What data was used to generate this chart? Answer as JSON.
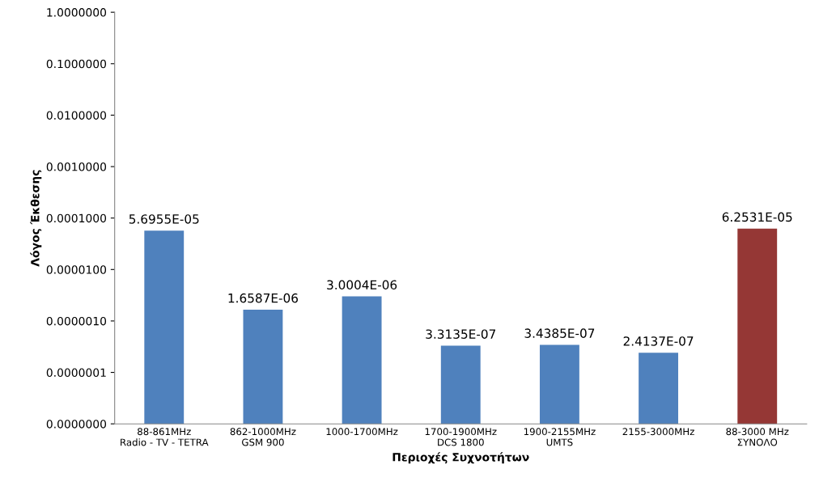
{
  "chart_data": {
    "type": "bar",
    "xlabel": "Περιοχές Συχνοτήτων",
    "ylabel": "Λόγος Έκθεσης",
    "categories": [
      "88-861MHz\nRadio - TV - TETRA",
      "862-1000MHz\nGSM 900",
      "1000-1700MHz",
      "1700-1900MHz\nDCS 1800",
      "1900-2155MHz\nUMTS",
      "2155-3000MHz",
      "88-3000 MHz\nΣΥΝΟΛΟ"
    ],
    "values": [
      5.6955e-05,
      1.6587e-06,
      3.0004e-06,
      3.3135e-07,
      3.4385e-07,
      2.4137e-07,
      6.2531e-05
    ],
    "colors": [
      "#4f81bd",
      "#4f81bd",
      "#4f81bd",
      "#4f81bd",
      "#4f81bd",
      "#4f81bd",
      "#953735"
    ],
    "value_labels": [
      "5.6955E-05",
      "1.6587E-06",
      "3.0004E-06",
      "3.3135E-07",
      "3.4385E-07",
      "2.4137E-07",
      "6.2531E-05"
    ],
    "log": "y",
    "ylim": [
      1e-08,
      1
    ],
    "yticks": [
      {
        "value": 1e-08,
        "label": "0.0000000"
      },
      {
        "value": 1e-07,
        "label": "0.0000001"
      },
      {
        "value": 1e-06,
        "label": "0.0000010"
      },
      {
        "value": 1e-05,
        "label": "0.0000100"
      },
      {
        "value": 0.0001,
        "label": "0.0001000"
      },
      {
        "value": 0.001,
        "label": "0.0010000"
      },
      {
        "value": 0.01,
        "label": "0.0100000"
      },
      {
        "value": 0.1,
        "label": "0.1000000"
      },
      {
        "value": 1,
        "label": "1.0000000"
      }
    ],
    "grid": false
  }
}
